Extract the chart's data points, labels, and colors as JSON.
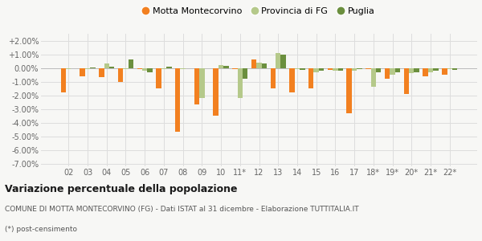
{
  "years": [
    "02",
    "03",
    "04",
    "05",
    "06",
    "07",
    "08",
    "09",
    "10",
    "11*",
    "12",
    "13",
    "14",
    "15",
    "16",
    "17",
    "18*",
    "19*",
    "20*",
    "21*",
    "22*"
  ],
  "motta": [
    -1.8,
    -0.6,
    -0.7,
    -1.0,
    -0.1,
    -1.5,
    -4.7,
    -2.7,
    -3.5,
    -0.1,
    0.6,
    -1.5,
    -1.8,
    -1.5,
    -0.15,
    -3.3,
    -0.1,
    -0.8,
    -1.9,
    -0.6,
    -0.5
  ],
  "provincia": [
    -0.1,
    -0.1,
    0.3,
    -0.1,
    -0.2,
    -0.1,
    -0.1,
    -2.2,
    0.2,
    -2.2,
    0.4,
    1.1,
    -0.1,
    -0.3,
    -0.2,
    -0.2,
    -1.4,
    -0.5,
    -0.4,
    -0.3,
    -0.1
  ],
  "puglia": [
    -0.05,
    0.05,
    0.1,
    0.6,
    -0.3,
    0.1,
    -0.05,
    -0.05,
    0.15,
    -0.8,
    0.3,
    0.95,
    -0.15,
    -0.2,
    -0.2,
    -0.1,
    -0.3,
    -0.3,
    -0.3,
    -0.2,
    -0.15
  ],
  "color_motta": "#f28020",
  "color_provincia": "#b5c98a",
  "color_puglia": "#6b8f3e",
  "title": "Variazione percentuale della popolazione",
  "subtitle": "COMUNE DI MOTTA MONTECORVINO (FG) - Dati ISTAT al 31 dicembre - Elaborazione TUTTITALIA.IT",
  "footnote": "(*) post-censimento",
  "ylim": [
    -7.2,
    2.5
  ],
  "yticks": [
    2.0,
    1.0,
    0.0,
    -1.0,
    -2.0,
    -3.0,
    -4.0,
    -5.0,
    -6.0,
    -7.0
  ],
  "background_color": "#f7f7f5",
  "grid_color": "#dddddd",
  "bar_width": 0.27,
  "legend_labels": [
    "Motta Montecorvino",
    "Provincia di FG",
    "Puglia"
  ],
  "title_fontsize": 9,
  "subtitle_fontsize": 6.5,
  "tick_fontsize": 7,
  "legend_fontsize": 8
}
